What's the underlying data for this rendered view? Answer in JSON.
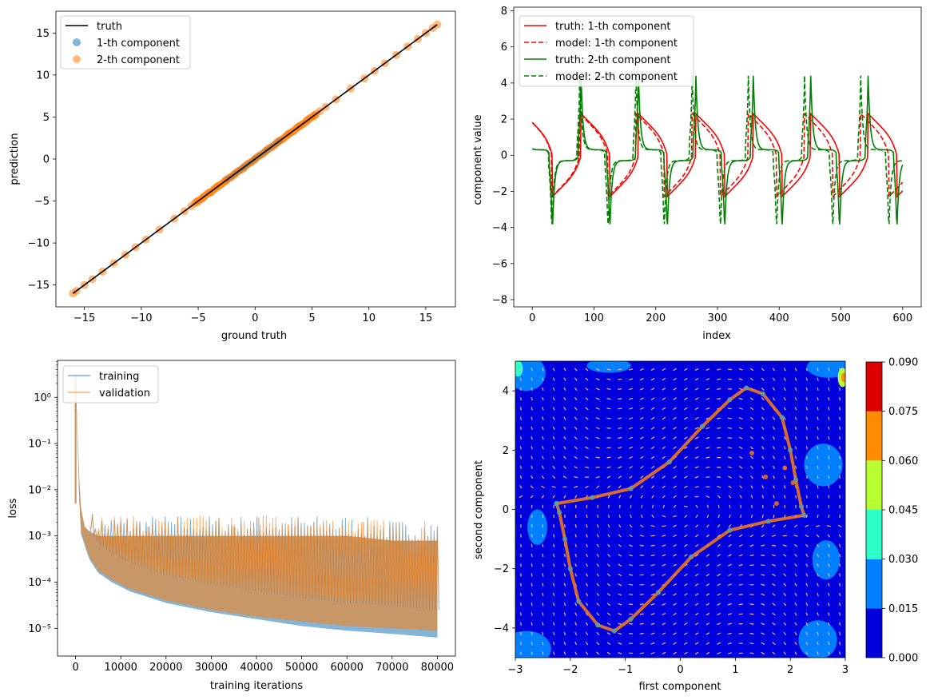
{
  "chart_data": [
    {
      "type": "scatter",
      "xlabel": "ground truth",
      "ylabel": "prediction",
      "xlim": [
        -17.5,
        17.6
      ],
      "ylim": [
        -17.6,
        17.6
      ],
      "xticks": [
        -15,
        -10,
        -5,
        0,
        5,
        10,
        15
      ],
      "yticks": [
        -15,
        -10,
        -5,
        0,
        5,
        10,
        15
      ],
      "legend_position": "upper-left",
      "series": [
        {
          "name": "truth",
          "kind": "line",
          "color": "#000000",
          "x": [
            -16,
            16
          ],
          "y": [
            -16,
            16
          ]
        },
        {
          "name": "1-th component",
          "kind": "scatter",
          "color": "#1f77b4",
          "range": [
            -2.4,
            2.3
          ]
        },
        {
          "name": "2-th component",
          "kind": "scatter",
          "color": "#ff7f0e",
          "x": [
            -16,
            -15.7,
            -15,
            -14.3,
            -13.4,
            -12.4,
            -11.4,
            -10.5,
            -9.6,
            -8.4,
            -7.1,
            -6.2,
            -5.6,
            -5.1,
            -4.6,
            -4.0,
            -3.3,
            -2.6,
            -1.8,
            -1.0,
            0,
            1.0,
            2.0,
            2.9,
            3.8,
            4.6,
            5.2,
            5.7,
            6.2,
            7.1,
            8.4,
            9.6,
            10.5,
            11.4,
            12.4,
            13.4,
            14.3,
            15.0,
            15.6,
            16
          ]
        }
      ],
      "legend": [
        "truth",
        "1-th component",
        "2-th component"
      ]
    },
    {
      "type": "line",
      "xlabel": "index",
      "ylabel": "component value",
      "xlim": [
        -30,
        630
      ],
      "ylim": [
        -8.4,
        8.2
      ],
      "xticks": [
        0,
        100,
        200,
        300,
        400,
        500,
        600
      ],
      "yticks": [
        -8,
        -6,
        -4,
        -2,
        0,
        2,
        4,
        6,
        8
      ],
      "legend_position": "upper-left",
      "description": "Van der Pol style relaxation oscillation, period ~93 (truth) / ~91 (model); first component ranges -2.3..2.3, second component -4.1..4.1",
      "series": [
        {
          "name": "truth: 1-th component",
          "color": "#ff0000",
          "style": "solid",
          "period": 93,
          "amplitude": 2.3
        },
        {
          "name": "model: 1-th component",
          "color": "#ff0000",
          "style": "dashed",
          "period": 91,
          "amplitude": 2.3
        },
        {
          "name": "truth: 2-th component",
          "color": "#008000",
          "style": "solid",
          "period": 93,
          "amplitude": 4.1
        },
        {
          "name": "model: 2-th component",
          "color": "#008000",
          "style": "dashed",
          "period": 91,
          "amplitude": 4.1
        }
      ],
      "legend": [
        "truth: 1-th component",
        "model: 1-th component",
        "truth: 2-th component",
        "model: 2-th component"
      ]
    },
    {
      "type": "line",
      "scale_y": "log",
      "xlabel": "training iterations",
      "ylabel": "loss",
      "xlim": [
        -4000,
        84000
      ],
      "ylim_log10": [
        -5.6,
        0.8
      ],
      "xticks": [
        0,
        10000,
        20000,
        30000,
        40000,
        50000,
        60000,
        70000,
        80000
      ],
      "yticks": [
        "10⁻⁵",
        "10⁻⁴",
        "10⁻³",
        "10⁻²",
        "10⁻¹",
        "10⁰"
      ],
      "legend_position": "upper-left",
      "series": [
        {
          "name": "training",
          "color": "#1f77b4",
          "x": [
            0,
            1000,
            2000,
            3000,
            5000,
            8000,
            12000,
            20000,
            30000,
            40000,
            50000,
            60000,
            70000,
            80000
          ],
          "lower_log10": [
            0.5,
            -2.9,
            -3.2,
            -3.5,
            -3.8,
            -4.0,
            -4.2,
            -4.45,
            -4.65,
            -4.8,
            -4.95,
            -5.05,
            -5.12,
            -5.2
          ],
          "upper_log10": [
            0.5,
            -2.3,
            -2.8,
            -2.9,
            -3.0,
            -3.0,
            -3.0,
            -3.0,
            -3.0,
            -3.0,
            -3.0,
            -3.0,
            -3.1,
            -3.1
          ]
        },
        {
          "name": "validation",
          "color": "#ff7f0e",
          "x": [
            0,
            1000,
            2000,
            3000,
            5000,
            8000,
            12000,
            20000,
            30000,
            40000,
            50000,
            60000,
            70000,
            80000
          ],
          "lower_log10": [
            0.4,
            -2.85,
            -3.15,
            -3.45,
            -3.75,
            -3.95,
            -4.15,
            -4.4,
            -4.6,
            -4.75,
            -4.85,
            -4.95,
            -5.0,
            -5.05
          ],
          "upper_log10": [
            0.4,
            -2.3,
            -2.8,
            -2.9,
            -3.0,
            -3.0,
            -3.0,
            -3.0,
            -3.0,
            -3.0,
            -3.0,
            -3.0,
            -3.1,
            -3.1
          ]
        }
      ],
      "legend": [
        "training",
        "validation"
      ]
    },
    {
      "type": "heatmap",
      "xlabel": "first component",
      "ylabel": "second component",
      "xlim": [
        -3,
        3
      ],
      "ylim": [
        -5,
        5
      ],
      "xticks": [
        -3,
        -2,
        -1,
        0,
        1,
        2,
        3
      ],
      "yticks": [
        -4,
        -2,
        0,
        2,
        4
      ],
      "colorbar_ticks": [
        "0.000",
        "0.015",
        "0.030",
        "0.045",
        "0.060",
        "0.075",
        "0.090"
      ],
      "colorbar_colors": [
        "#0000dd",
        "#0080ff",
        "#2effc8",
        "#b8ff30",
        "#ff8c00",
        "#dd0000"
      ],
      "description": "Error contour (mostly lowest level) with quiver field and limit-cycle trajectory overlaid as scatter",
      "limit_cycle": {
        "x": [
          -2.25,
          -1.6,
          -0.9,
          -0.2,
          0.4,
          0.9,
          1.2,
          1.5,
          1.85,
          2.0,
          2.1,
          2.2,
          2.25,
          1.6,
          0.9,
          0.2,
          -0.4,
          -0.9,
          -1.2,
          -1.5,
          -1.85,
          -2.0,
          -2.1,
          -2.2,
          -2.25
        ],
        "y": [
          0.2,
          0.4,
          0.7,
          1.6,
          2.8,
          3.7,
          4.1,
          3.9,
          3.1,
          2.0,
          1.0,
          0.1,
          -0.2,
          -0.4,
          -0.7,
          -1.6,
          -2.8,
          -3.7,
          -4.1,
          -3.9,
          -3.1,
          -2.0,
          -1.0,
          -0.1,
          0.2
        ]
      },
      "scatter_color": "#ff7f0e"
    }
  ]
}
